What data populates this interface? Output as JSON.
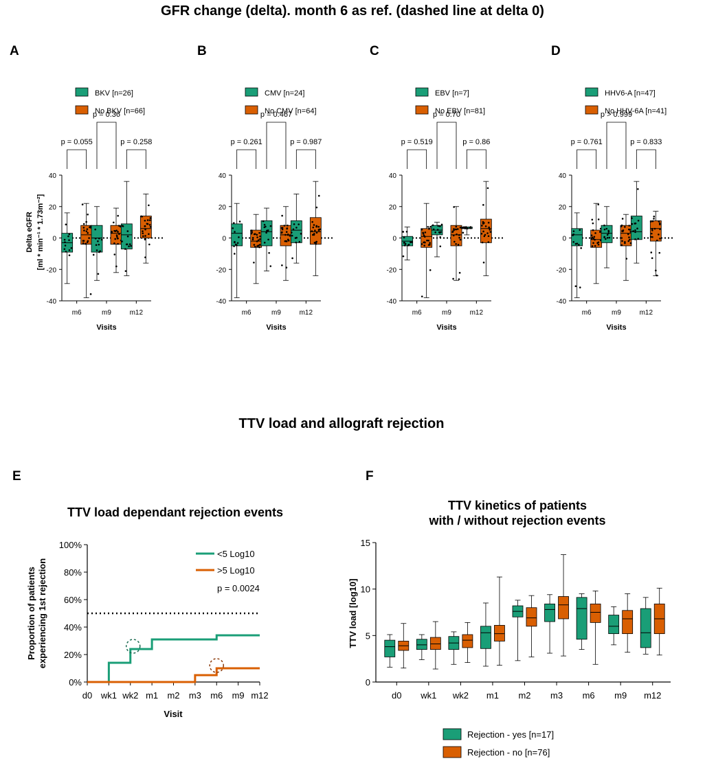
{
  "main_title": "GFR change (delta). month 6 as ref. (dashed line at delta 0)",
  "section2_title": "TTV load and allograft rejection",
  "colors": {
    "green": "#1a9e77",
    "orange": "#d95f02",
    "black": "#000000"
  },
  "chart_data": [
    {
      "panel": "A",
      "type": "box",
      "xlabel": "Visits",
      "ylabel": "Delta eGFR",
      "ylabel2": "[ml * min⁻¹ * 1.73m⁻²]",
      "ylim": [
        -40,
        40
      ],
      "yticks": [
        "40",
        "20",
        "0",
        "-20",
        "-40"
      ],
      "categories": [
        "m6",
        "m9",
        "m12"
      ],
      "legend": [
        "BKV [n=26]",
        "No BKV [n=66]"
      ],
      "pvalues": [
        "p = 0.055",
        "p = 0.36",
        "p = 0.258"
      ],
      "series": [
        {
          "name": "BKV [n=26]",
          "color": "green",
          "boxes": [
            [
              -29,
              -9,
              -3,
              3,
              16
            ],
            [
              -27,
              -9,
              0,
              8,
              20
            ],
            [
              -24,
              -7,
              2,
              9,
              36
            ]
          ]
        },
        {
          "name": "No BKV [n=66]",
          "color": "orange",
          "boxes": [
            [
              -38,
              -4,
              2,
              8,
              22
            ],
            [
              -22,
              -4,
              3,
              8,
              19
            ],
            [
              -16,
              0,
              6,
              14,
              28
            ]
          ]
        }
      ]
    },
    {
      "panel": "B",
      "type": "box",
      "xlabel": "Visits",
      "ylim": [
        -40,
        40
      ],
      "yticks": [
        "40",
        "20",
        "0",
        "-20",
        "-40"
      ],
      "categories": [
        "m6",
        "m9",
        "m12"
      ],
      "legend": [
        "CMV [n=24]",
        "No CMV [n=64]"
      ],
      "pvalues": [
        "p = 0.261",
        "p = 0.467",
        "p = 0.987"
      ],
      "series": [
        {
          "name": "CMV [n=24]",
          "color": "green",
          "boxes": [
            [
              -38,
              -5,
              3,
              9,
              22
            ],
            [
              -21,
              -5,
              4,
              11,
              19
            ],
            [
              -16,
              -3,
              5,
              11,
              28
            ]
          ]
        },
        {
          "name": "No CMV [n=64]",
          "color": "orange",
          "boxes": [
            [
              -29,
              -6,
              -2,
              5,
              15
            ],
            [
              -27,
              -5,
              2,
              8,
              20
            ],
            [
              -24,
              -4,
              4,
              13,
              36
            ]
          ]
        }
      ]
    },
    {
      "panel": "C",
      "type": "box",
      "xlabel": "Visits",
      "ylim": [
        -40,
        40
      ],
      "yticks": [
        "40",
        "20",
        "0",
        "-20",
        "-40"
      ],
      "categories": [
        "m6",
        "m9",
        "m12"
      ],
      "legend": [
        "EBV [n=7]",
        "No EBV [n=81]"
      ],
      "pvalues": [
        "p = 0.519",
        "p = 0.70",
        "p = 0.86"
      ],
      "series": [
        {
          "name": "EBV [n=7]",
          "color": "green",
          "boxes": [
            [
              -14,
              -5,
              -2,
              1,
              7
            ],
            [
              -12,
              2,
              5,
              8,
              10
            ],
            [
              2,
              6,
              6,
              7,
              7
            ]
          ]
        },
        {
          "name": "No EBV [n=81]",
          "color": "orange",
          "boxes": [
            [
              -38,
              -6,
              1,
              6,
              22
            ],
            [
              -27,
              -5,
              2,
              8,
              20
            ],
            [
              -24,
              -3,
              6,
              12,
              36
            ]
          ]
        }
      ]
    },
    {
      "panel": "D",
      "type": "box",
      "xlabel": "Visits",
      "ylim": [
        -40,
        40
      ],
      "yticks": [
        "40",
        "20",
        "0",
        "-20",
        "-40"
      ],
      "categories": [
        "m6",
        "m9",
        "m12"
      ],
      "legend": [
        "HHV6-A [n=47]",
        "No HHV-6A [n=41]"
      ],
      "pvalues": [
        "p = 0.761",
        "p > 0.999",
        "p = 0.833"
      ],
      "series": [
        {
          "name": "HHV6-A [n=47]",
          "color": "green",
          "boxes": [
            [
              -38,
              -5,
              2,
              6,
              16
            ],
            [
              -19,
              -3,
              3,
              8,
              20
            ],
            [
              -16,
              -1,
              4,
              14,
              36
            ]
          ]
        },
        {
          "name": "No HHV-6A [n=41]",
          "color": "orange",
          "boxes": [
            [
              -29,
              -6,
              -1,
              5,
              22
            ],
            [
              -27,
              -5,
              3,
              8,
              15
            ],
            [
              -24,
              -2,
              6,
              11,
              17
            ]
          ]
        }
      ]
    },
    {
      "panel": "E",
      "type": "line",
      "title": "TTV load dependant rejection events",
      "xlabel": "Visit",
      "ylabel": "Proportion of patients",
      "ylabel2": "experiencing 1st rejection",
      "categories": [
        "d0",
        "wk1",
        "wk2",
        "m1",
        "m2",
        "m3",
        "m6",
        "m9",
        "m12"
      ],
      "yticks": [
        "100%",
        "80%",
        "60%",
        "40%",
        "20%",
        "0%"
      ],
      "ylim": [
        0,
        100
      ],
      "reference_line": 50,
      "legend": [
        "<5 Log10",
        ">5 Log10"
      ],
      "pvalue": "p = 0.0024",
      "series": [
        {
          "name": "<5 Log10",
          "color": "green",
          "values": [
            0,
            14,
            24,
            31,
            31,
            31,
            34,
            34,
            34
          ]
        },
        {
          "name": ">5 Log10",
          "color": "orange",
          "values": [
            0,
            0,
            0,
            0,
            0,
            5,
            10,
            10,
            10
          ]
        }
      ]
    },
    {
      "panel": "F",
      "type": "box",
      "title_line1": "TTV kinetics of patients",
      "title_line2": "with / without rejection events",
      "ylabel": "TTV load [log10]",
      "ylim": [
        0,
        15
      ],
      "yticks": [
        "15",
        "10",
        "5",
        "0"
      ],
      "categories": [
        "d0",
        "wk1",
        "wk2",
        "m1",
        "m2",
        "m3",
        "m6",
        "m9",
        "m12"
      ],
      "legend": [
        "Rejection - yes [n=17]",
        "Rejection - no [n=76]"
      ],
      "series": [
        {
          "name": "Rejection - yes [n=17]",
          "color": "green",
          "boxes": [
            [
              1.6,
              2.7,
              3.8,
              4.5,
              5.1
            ],
            [
              2.4,
              3.5,
              4.0,
              4.6,
              5.1
            ],
            [
              1.9,
              3.5,
              4.2,
              4.9,
              5.4
            ],
            [
              1.7,
              3.6,
              5.3,
              6.0,
              8.5
            ],
            [
              2.3,
              7.0,
              7.6,
              8.2,
              8.8
            ],
            [
              3.1,
              6.5,
              7.8,
              8.4,
              9.4
            ],
            [
              3.5,
              4.6,
              7.9,
              9.1,
              9.5
            ],
            [
              4.0,
              5.2,
              6.0,
              7.2,
              8.1
            ],
            [
              3.0,
              3.7,
              5.3,
              7.9,
              9.1
            ]
          ]
        },
        {
          "name": "Rejection - no [n=76]",
          "color": "orange",
          "boxes": [
            [
              1.5,
              3.4,
              3.9,
              4.4,
              6.3
            ],
            [
              1.4,
              3.5,
              4.1,
              4.8,
              6.5
            ],
            [
              2.1,
              3.7,
              4.5,
              5.1,
              6.4
            ],
            [
              1.8,
              4.4,
              5.2,
              6.1,
              11.3
            ],
            [
              2.7,
              6.0,
              6.9,
              8.0,
              9.3
            ],
            [
              2.8,
              6.8,
              8.3,
              9.2,
              13.7
            ],
            [
              1.9,
              6.4,
              7.5,
              8.4,
              9.8
            ],
            [
              3.2,
              5.2,
              6.8,
              7.7,
              9.5
            ],
            [
              2.9,
              5.2,
              6.8,
              8.4,
              10.1
            ]
          ]
        }
      ]
    }
  ]
}
